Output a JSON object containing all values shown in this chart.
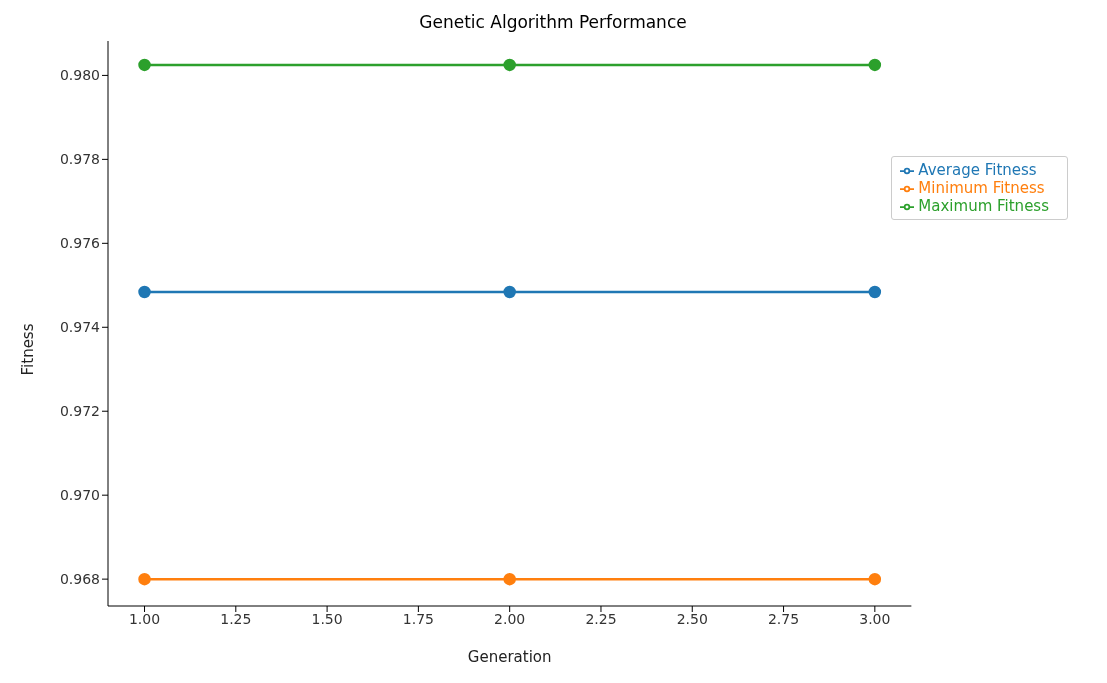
{
  "chart_data": {
    "type": "line",
    "title": "Genetic Algorithm Performance",
    "xlabel": "Generation",
    "ylabel": "Fitness",
    "x": [
      1,
      2,
      3
    ],
    "series": [
      {
        "name": "Average Fitness",
        "color": "#1f77b4",
        "values": [
          0.97484,
          0.97484,
          0.97484
        ]
      },
      {
        "name": "Minimum Fitness",
        "color": "#ff7f0e",
        "values": [
          0.968,
          0.968,
          0.968
        ]
      },
      {
        "name": "Maximum Fitness",
        "color": "#2ca02c",
        "values": [
          0.98025,
          0.98025,
          0.98025
        ]
      }
    ],
    "xlim": [
      0.9,
      3.1
    ],
    "xticks": [
      {
        "value": 1,
        "label": "1.00"
      },
      {
        "value": 1.25,
        "label": "1.25"
      },
      {
        "value": 1.5,
        "label": "1.50"
      },
      {
        "value": 1.75,
        "label": "1.75"
      },
      {
        "value": 2,
        "label": "2.00"
      },
      {
        "value": 2.25,
        "label": "2.25"
      },
      {
        "value": 2.5,
        "label": "2.50"
      },
      {
        "value": 2.75,
        "label": "2.75"
      },
      {
        "value": 3,
        "label": "3.00"
      }
    ],
    "ylim": [
      0.96736,
      0.98082
    ],
    "yticks": [
      0.968,
      {
        "value": 0.97,
        "label": "0.970"
      },
      0.972,
      0.974,
      0.976,
      0.978,
      {
        "value": 0.98,
        "label": "0.980"
      }
    ],
    "legend": "top right",
    "marker": "circle",
    "line_style": "solid",
    "grid": false
  }
}
